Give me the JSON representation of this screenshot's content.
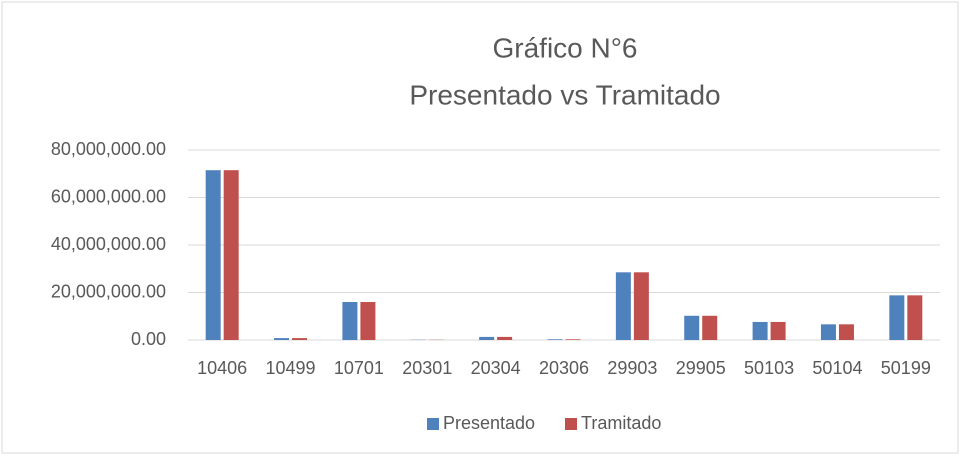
{
  "chart_data": {
    "type": "bar",
    "title": "Gráfico N°6",
    "subtitle": "Presentado vs Tramitado",
    "categories": [
      "10406",
      "10499",
      "10701",
      "20301",
      "20304",
      "20306",
      "29903",
      "29905",
      "50103",
      "50104",
      "50199"
    ],
    "series": [
      {
        "name": "Presentado",
        "color": "#4f81bd",
        "values": [
          71500000,
          800000,
          16000000,
          100000,
          1300000,
          300000,
          28500000,
          10200000,
          7600000,
          6600000,
          18800000
        ]
      },
      {
        "name": "Tramitado",
        "color": "#c0504d",
        "values": [
          71500000,
          800000,
          16000000,
          100000,
          1300000,
          300000,
          28500000,
          10200000,
          7600000,
          6600000,
          18800000
        ]
      }
    ],
    "ylim": [
      0,
      80000000
    ],
    "yticks": [
      {
        "value": 0,
        "label": "0.00"
      },
      {
        "value": 20000000,
        "label": "20,000,000.00"
      },
      {
        "value": 40000000,
        "label": "40,000,000.00"
      },
      {
        "value": 60000000,
        "label": "60,000,000.00"
      },
      {
        "value": 80000000,
        "label": "80,000,000.00"
      }
    ],
    "grid": true,
    "legend": "bottom"
  }
}
